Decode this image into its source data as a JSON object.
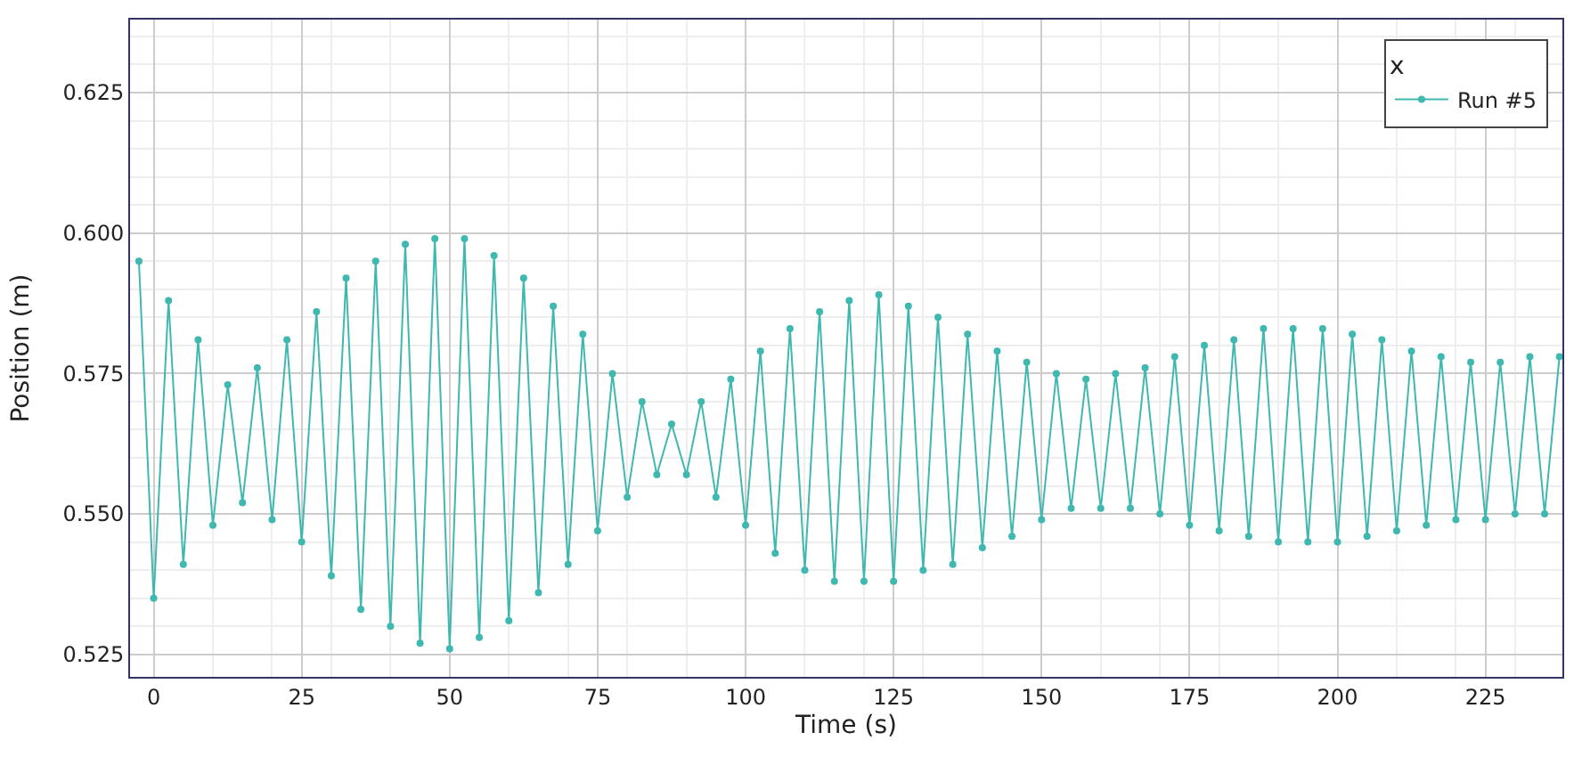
{
  "chart_data": {
    "type": "line",
    "xlabel": "Time (s)",
    "ylabel": "Position (m)",
    "legend_title": "x",
    "x": [
      -2.5,
      0,
      2.5,
      5,
      7.5,
      10,
      12.5,
      15,
      17.5,
      20,
      22.5,
      25,
      27.5,
      30,
      32.5,
      35,
      37.5,
      40,
      42.5,
      45,
      47.5,
      50,
      52.5,
      55,
      57.5,
      60,
      62.5,
      65,
      67.5,
      70,
      72.5,
      75,
      77.5,
      80,
      82.5,
      85,
      87.5,
      90,
      92.5,
      95,
      97.5,
      100,
      102.5,
      105,
      107.5,
      110,
      112.5,
      115,
      117.5,
      120,
      122.5,
      125,
      127.5,
      130,
      132.5,
      135,
      137.5,
      140,
      142.5,
      145,
      147.5,
      150,
      152.5,
      155,
      157.5,
      160,
      162.5,
      165,
      167.5,
      170,
      172.5,
      175,
      177.5,
      180,
      182.5,
      185,
      187.5,
      190,
      192.5,
      195,
      197.5,
      200,
      202.5,
      205,
      207.5,
      210,
      212.5,
      215,
      217.5,
      220,
      222.5,
      225,
      227.5,
      230,
      232.5,
      235,
      237.5
    ],
    "series": [
      {
        "name": "Run #5",
        "color": "#3fb8b0",
        "values": [
          0.595,
          0.535,
          0.588,
          0.541,
          0.581,
          0.548,
          0.573,
          0.552,
          0.576,
          0.549,
          0.581,
          0.545,
          0.586,
          0.539,
          0.592,
          0.533,
          0.595,
          0.53,
          0.598,
          0.527,
          0.599,
          0.526,
          0.599,
          0.528,
          0.596,
          0.531,
          0.592,
          0.536,
          0.587,
          0.541,
          0.582,
          0.547,
          0.575,
          0.553,
          0.57,
          0.557,
          0.566,
          0.557,
          0.57,
          0.553,
          0.574,
          0.548,
          0.579,
          0.543,
          0.583,
          0.54,
          0.586,
          0.538,
          0.588,
          0.538,
          0.589,
          0.538,
          0.587,
          0.54,
          0.585,
          0.541,
          0.582,
          0.544,
          0.579,
          0.546,
          0.577,
          0.549,
          0.575,
          0.551,
          0.574,
          0.551,
          0.575,
          0.551,
          0.576,
          0.55,
          0.578,
          0.548,
          0.58,
          0.547,
          0.581,
          0.546,
          0.583,
          0.545,
          0.583,
          0.545,
          0.583,
          0.545,
          0.582,
          0.546,
          0.581,
          0.547,
          0.579,
          0.548,
          0.578,
          0.549,
          0.577,
          0.549,
          0.577,
          0.55,
          0.578,
          0.55,
          0.578
        ]
      }
    ],
    "xlim": [
      -4,
      238
    ],
    "xticks": [
      0,
      25,
      50,
      75,
      100,
      125,
      150,
      175,
      200,
      225
    ],
    "ylim": [
      0.521,
      0.638
    ],
    "yticks": [
      {
        "value": 0.525,
        "label": "0.525"
      },
      {
        "value": 0.55,
        "label": "0.550"
      },
      {
        "value": 0.575,
        "label": "0.575"
      },
      {
        "value": 0.6,
        "label": "0.600"
      },
      {
        "value": 0.625,
        "label": "0.625"
      }
    ],
    "grid": true,
    "legend": "top right",
    "marker": "circle",
    "line_style": "solid"
  }
}
